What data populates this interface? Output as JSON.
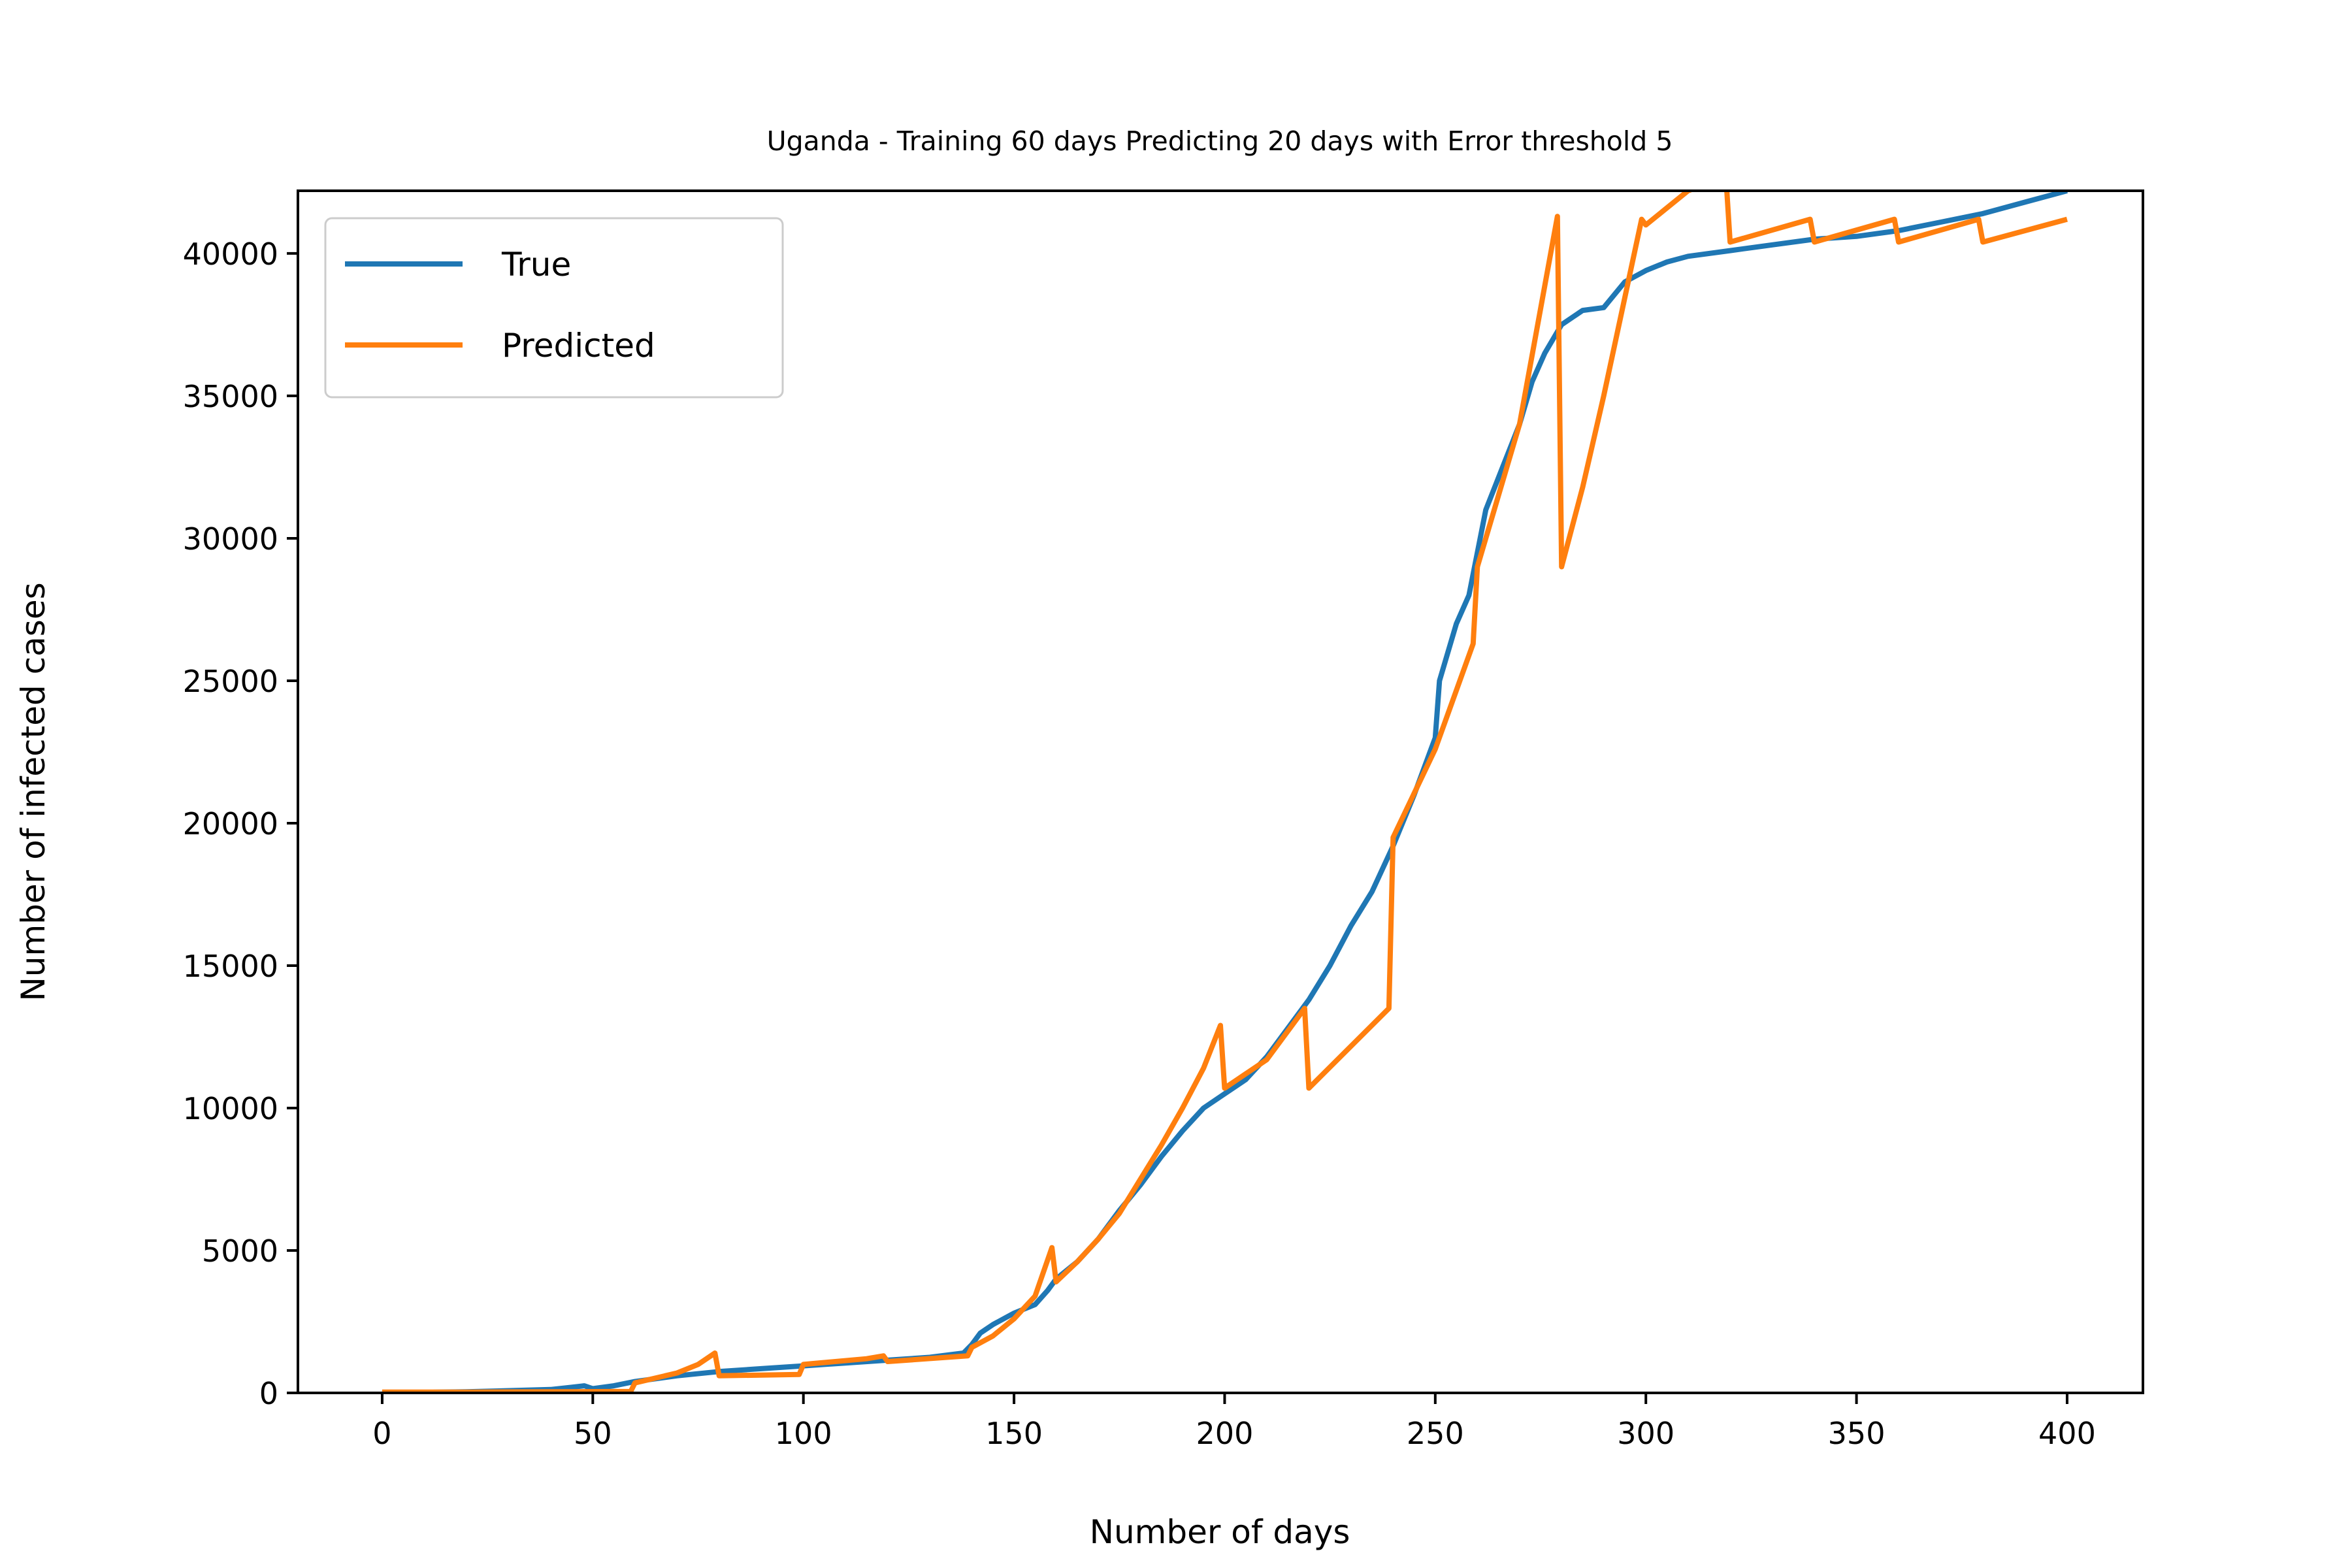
{
  "chart_data": {
    "type": "line",
    "title": "Uganda - Training 60 days Predicting 20 days with Error threshold 5",
    "xlabel": "Number of days",
    "ylabel": "Number of infected cases",
    "xlim": [
      -20,
      418
    ],
    "ylim": [
      0,
      42200
    ],
    "xticks": [
      0,
      50,
      100,
      150,
      200,
      250,
      300,
      350,
      400
    ],
    "yticks": [
      0,
      5000,
      10000,
      15000,
      20000,
      25000,
      30000,
      35000,
      40000
    ],
    "legend_position": "top-left",
    "grid": false,
    "series": [
      {
        "name": "True",
        "color": "#1f77b4",
        "points": [
          [
            0,
            0
          ],
          [
            20,
            40
          ],
          [
            40,
            120
          ],
          [
            45,
            200
          ],
          [
            48,
            250
          ],
          [
            50,
            150
          ],
          [
            55,
            250
          ],
          [
            60,
            400
          ],
          [
            70,
            600
          ],
          [
            80,
            750
          ],
          [
            90,
            850
          ],
          [
            100,
            950
          ],
          [
            110,
            1050
          ],
          [
            120,
            1150
          ],
          [
            130,
            1250
          ],
          [
            138,
            1400
          ],
          [
            140,
            1700
          ],
          [
            142,
            2100
          ],
          [
            145,
            2400
          ],
          [
            150,
            2800
          ],
          [
            155,
            3100
          ],
          [
            158,
            3600
          ],
          [
            160,
            4000
          ],
          [
            165,
            4600
          ],
          [
            170,
            5400
          ],
          [
            175,
            6400
          ],
          [
            180,
            7300
          ],
          [
            185,
            8300
          ],
          [
            190,
            9200
          ],
          [
            195,
            10000
          ],
          [
            200,
            10500
          ],
          [
            205,
            11000
          ],
          [
            210,
            11800
          ],
          [
            215,
            12800
          ],
          [
            220,
            13800
          ],
          [
            225,
            15000
          ],
          [
            230,
            16400
          ],
          [
            235,
            17600
          ],
          [
            240,
            19200
          ],
          [
            245,
            21000
          ],
          [
            250,
            23000
          ],
          [
            251,
            25000
          ],
          [
            255,
            27000
          ],
          [
            258,
            28000
          ],
          [
            262,
            31000
          ],
          [
            266,
            32500
          ],
          [
            270,
            34000
          ],
          [
            273,
            35500
          ],
          [
            276,
            36500
          ],
          [
            280,
            37500
          ],
          [
            285,
            38000
          ],
          [
            290,
            38100
          ],
          [
            295,
            39000
          ],
          [
            300,
            39400
          ],
          [
            305,
            39700
          ],
          [
            310,
            39900
          ],
          [
            320,
            40100
          ],
          [
            330,
            40300
          ],
          [
            340,
            40500
          ],
          [
            350,
            40600
          ],
          [
            360,
            40800
          ],
          [
            370,
            41100
          ],
          [
            380,
            41400
          ],
          [
            390,
            41800
          ],
          [
            400,
            42200
          ]
        ]
      },
      {
        "name": "Predicted",
        "color": "#ff7f0e",
        "points": [
          [
            0,
            30
          ],
          [
            20,
            30
          ],
          [
            40,
            40
          ],
          [
            59,
            50
          ],
          [
            60,
            350
          ],
          [
            70,
            700
          ],
          [
            75,
            1000
          ],
          [
            79,
            1400
          ],
          [
            80,
            600
          ],
          [
            99,
            650
          ],
          [
            100,
            1000
          ],
          [
            115,
            1200
          ],
          [
            119,
            1300
          ],
          [
            120,
            1100
          ],
          [
            139,
            1300
          ],
          [
            140,
            1600
          ],
          [
            145,
            2000
          ],
          [
            150,
            2600
          ],
          [
            155,
            3400
          ],
          [
            159,
            5100
          ],
          [
            160,
            3900
          ],
          [
            165,
            4600
          ],
          [
            170,
            5400
          ],
          [
            175,
            6300
          ],
          [
            180,
            7500
          ],
          [
            185,
            8700
          ],
          [
            190,
            10000
          ],
          [
            195,
            11400
          ],
          [
            199,
            12900
          ],
          [
            200,
            10700
          ],
          [
            210,
            11700
          ],
          [
            219,
            13500
          ],
          [
            220,
            10700
          ],
          [
            239,
            13500
          ],
          [
            240,
            19500
          ],
          [
            250,
            22600
          ],
          [
            259,
            26300
          ],
          [
            260,
            29000
          ],
          [
            270,
            34000
          ],
          [
            279,
            41300
          ],
          [
            280,
            29000
          ],
          [
            285,
            31800
          ],
          [
            290,
            35000
          ],
          [
            299,
            41200
          ],
          [
            300,
            41000
          ],
          [
            310,
            42200
          ],
          [
            319,
            42700
          ],
          [
            320,
            40400
          ],
          [
            339,
            41200
          ],
          [
            340,
            40400
          ],
          [
            359,
            41200
          ],
          [
            360,
            40400
          ],
          [
            379,
            41200
          ],
          [
            380,
            40400
          ],
          [
            400,
            41200
          ]
        ]
      }
    ]
  }
}
